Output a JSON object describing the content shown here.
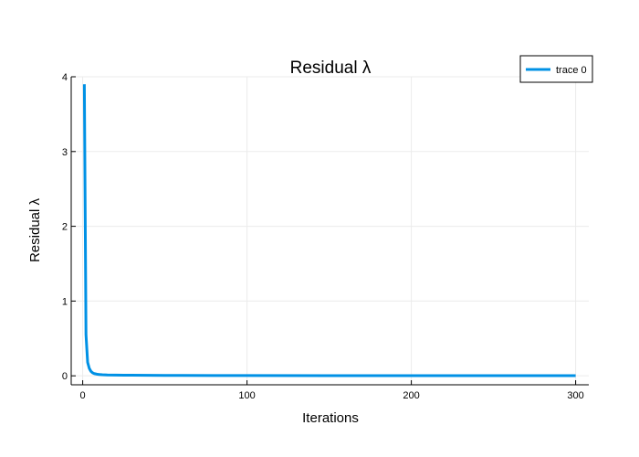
{
  "chart_data": {
    "type": "line",
    "title": "Residual λ",
    "xlabel": "Iterations",
    "ylabel": "Residual λ",
    "xlim": [
      -7,
      308
    ],
    "ylim": [
      -0.12,
      4.0
    ],
    "xticks": [
      0,
      100,
      200,
      300
    ],
    "yticks": [
      0,
      1,
      2,
      3,
      4
    ],
    "grid": true,
    "legend_position": "top-right",
    "series": [
      {
        "name": "trace 0",
        "color": "#0091e5",
        "x": [
          1,
          2,
          3,
          4,
          5,
          6,
          7,
          8,
          9,
          10,
          12,
          15,
          20,
          25,
          30,
          40,
          50,
          60,
          80,
          100,
          150,
          200,
          250,
          300
        ],
        "y": [
          3.9,
          0.55,
          0.18,
          0.1,
          0.06,
          0.04,
          0.03,
          0.025,
          0.02,
          0.018,
          0.015,
          0.012,
          0.01,
          0.009,
          0.008,
          0.007,
          0.006,
          0.005,
          0.004,
          0.004,
          0.003,
          0.003,
          0.002,
          0.002
        ]
      }
    ]
  }
}
